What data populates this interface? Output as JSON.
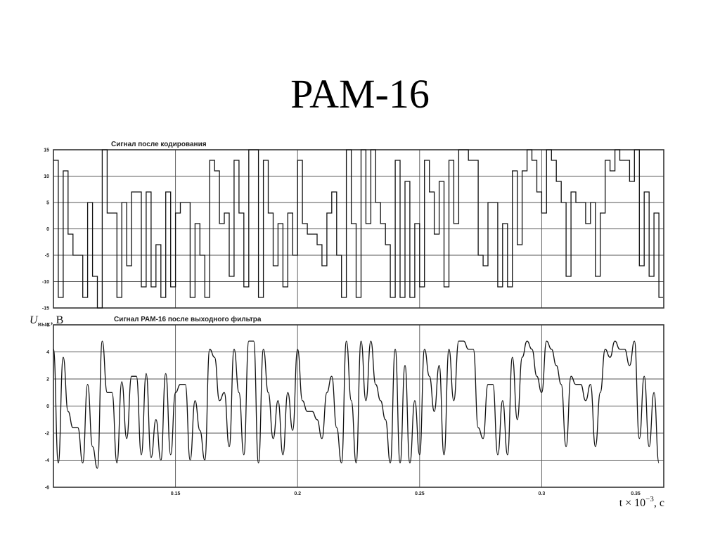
{
  "slide": {
    "title": "PAM-16"
  },
  "chart_data": [
    {
      "type": "line",
      "title": "Сигнал после кодирования",
      "ylim": [
        -15,
        15
      ],
      "yticks": [
        -15,
        -10,
        -5,
        0,
        5,
        10,
        15
      ],
      "xlim": [
        0.1,
        0.35
      ],
      "grid": true,
      "series": [
        {
          "step": true,
          "x": [
            0.1,
            0.102,
            0.104,
            0.106,
            0.108,
            0.11,
            0.112,
            0.114,
            0.116,
            0.118,
            0.12,
            0.122,
            0.124,
            0.126,
            0.128,
            0.13,
            0.132,
            0.134,
            0.136,
            0.138,
            0.14,
            0.142,
            0.144,
            0.146,
            0.148,
            0.15,
            0.152,
            0.154,
            0.156,
            0.158,
            0.16,
            0.162,
            0.164,
            0.166,
            0.168,
            0.17,
            0.172,
            0.174,
            0.176,
            0.178,
            0.18,
            0.182,
            0.184,
            0.186,
            0.188,
            0.19,
            0.192,
            0.194,
            0.196,
            0.198,
            0.2,
            0.202,
            0.204,
            0.206,
            0.208,
            0.21,
            0.212,
            0.214,
            0.216,
            0.218,
            0.22,
            0.222,
            0.224,
            0.226,
            0.228,
            0.23,
            0.232,
            0.234,
            0.236,
            0.238,
            0.24,
            0.242,
            0.244,
            0.246,
            0.248,
            0.25,
            0.252,
            0.254,
            0.256,
            0.258,
            0.26,
            0.262,
            0.264,
            0.266,
            0.268,
            0.27,
            0.272,
            0.274,
            0.276,
            0.278,
            0.28,
            0.282,
            0.284,
            0.286,
            0.288,
            0.29,
            0.292,
            0.294,
            0.296,
            0.298,
            0.3,
            0.302,
            0.304,
            0.306,
            0.308,
            0.31,
            0.312,
            0.314,
            0.316,
            0.318,
            0.32,
            0.322,
            0.324,
            0.326,
            0.328,
            0.33,
            0.332,
            0.334,
            0.336,
            0.338,
            0.34,
            0.342,
            0.344,
            0.346,
            0.348
          ],
          "y": [
            13,
            -13,
            11,
            -1,
            -5,
            -5,
            -13,
            5,
            -9,
            -15,
            15,
            3,
            3,
            -13,
            5,
            -7,
            7,
            7,
            -11,
            7,
            -11,
            -3,
            -13,
            7,
            -11,
            3,
            5,
            5,
            -13,
            1,
            -5,
            -13,
            13,
            11,
            1,
            3,
            -9,
            13,
            3,
            -11,
            15,
            15,
            -13,
            13,
            3,
            -7,
            1,
            -11,
            3,
            -5,
            13,
            1,
            -1,
            -1,
            -3,
            -7,
            3,
            7,
            -5,
            -13,
            15,
            1,
            -13,
            15,
            1,
            15,
            5,
            1,
            -3,
            -13,
            13,
            -13,
            9,
            -13,
            1,
            -11,
            13,
            7,
            -1,
            9,
            -11,
            13,
            1,
            15,
            15,
            13,
            13,
            -5,
            -7,
            5,
            5,
            -11,
            1,
            -11,
            11,
            -3,
            11,
            15,
            13,
            7,
            3,
            15,
            13,
            9,
            5,
            -9,
            7,
            5,
            5,
            1,
            5,
            -9,
            3,
            13,
            11,
            15,
            13,
            13,
            9,
            15,
            -7,
            7,
            -9,
            3,
            -13
          ]
        }
      ]
    },
    {
      "type": "line",
      "title": "Сигнал РАМ-16 после выходного фильтра",
      "ylabel": "U",
      "ylabel_sub": "вых",
      "ylabel_unit": ", В",
      "xlabel_main": "t × 10",
      "xlabel_exp": "−3",
      "xlabel_unit": ", с",
      "ylim": [
        -6,
        6
      ],
      "yticks": [
        -6,
        -4,
        -2,
        0,
        2,
        4,
        6
      ],
      "xlim": [
        0.1,
        0.35
      ],
      "xticks": [
        0.15,
        0.2,
        0.25,
        0.3,
        0.35
      ],
      "xtick_labels": [
        "0.15",
        "0.2",
        "0.25",
        "0.3",
        "0.35"
      ],
      "grid": true,
      "series": [
        {
          "step": false,
          "x": [
            0.1,
            0.102,
            0.104,
            0.106,
            0.108,
            0.11,
            0.112,
            0.114,
            0.116,
            0.118,
            0.12,
            0.122,
            0.124,
            0.126,
            0.128,
            0.13,
            0.132,
            0.134,
            0.136,
            0.138,
            0.14,
            0.142,
            0.144,
            0.146,
            0.148,
            0.15,
            0.152,
            0.154,
            0.156,
            0.158,
            0.16,
            0.162,
            0.164,
            0.166,
            0.168,
            0.17,
            0.172,
            0.174,
            0.176,
            0.178,
            0.18,
            0.182,
            0.184,
            0.186,
            0.188,
            0.19,
            0.192,
            0.194,
            0.196,
            0.198,
            0.2,
            0.202,
            0.204,
            0.206,
            0.208,
            0.21,
            0.212,
            0.214,
            0.216,
            0.218,
            0.22,
            0.222,
            0.224,
            0.226,
            0.228,
            0.23,
            0.232,
            0.234,
            0.236,
            0.238,
            0.24,
            0.242,
            0.244,
            0.246,
            0.248,
            0.25,
            0.252,
            0.254,
            0.256,
            0.258,
            0.26,
            0.262,
            0.264,
            0.266,
            0.268,
            0.27,
            0.272,
            0.274,
            0.276,
            0.278,
            0.28,
            0.282,
            0.284,
            0.286,
            0.288,
            0.29,
            0.292,
            0.294,
            0.296,
            0.298,
            0.3,
            0.302,
            0.304,
            0.306,
            0.308,
            0.31,
            0.312,
            0.314,
            0.316,
            0.318,
            0.32,
            0.322,
            0.324,
            0.326,
            0.328,
            0.33,
            0.332,
            0.334,
            0.336,
            0.338,
            0.34,
            0.342,
            0.344,
            0.346,
            0.348
          ],
          "y": [
            4.2,
            -4.2,
            3.6,
            -0.4,
            -1.6,
            -1.6,
            -4.2,
            1.6,
            -3.0,
            -4.6,
            4.8,
            1.0,
            1.0,
            -4.2,
            1.8,
            -2.4,
            2.2,
            2.2,
            -3.6,
            2.4,
            -3.8,
            -1.0,
            -4.0,
            2.4,
            -3.6,
            1.0,
            1.6,
            1.6,
            -4.0,
            0.4,
            -1.8,
            -4.0,
            4.2,
            3.6,
            0.4,
            1.0,
            -3.0,
            4.2,
            1.0,
            -3.6,
            4.8,
            4.8,
            -4.2,
            4.2,
            1.0,
            -2.4,
            0.4,
            -3.6,
            1.0,
            -1.8,
            4.2,
            0.4,
            -0.4,
            -0.4,
            -1.0,
            -2.4,
            1.0,
            2.2,
            -1.6,
            -4.2,
            4.8,
            0.4,
            -4.2,
            4.8,
            0.4,
            4.8,
            1.6,
            0.4,
            -1.0,
            -4.2,
            4.2,
            -4.2,
            3.0,
            -4.2,
            0.4,
            -3.6,
            4.2,
            2.2,
            -0.4,
            3.0,
            -3.6,
            4.2,
            0.4,
            4.8,
            4.8,
            4.2,
            4.2,
            -1.6,
            -2.4,
            1.6,
            1.6,
            -3.6,
            0.4,
            -3.6,
            3.6,
            -1.0,
            3.6,
            4.8,
            4.2,
            2.2,
            1.0,
            4.8,
            4.2,
            3.0,
            1.6,
            -3.0,
            2.2,
            1.6,
            1.6,
            0.4,
            1.6,
            -3.0,
            1.0,
            4.2,
            3.6,
            4.8,
            4.2,
            4.2,
            3.0,
            4.8,
            -2.4,
            2.2,
            -3.0,
            1.0,
            -4.2
          ]
        }
      ]
    }
  ]
}
